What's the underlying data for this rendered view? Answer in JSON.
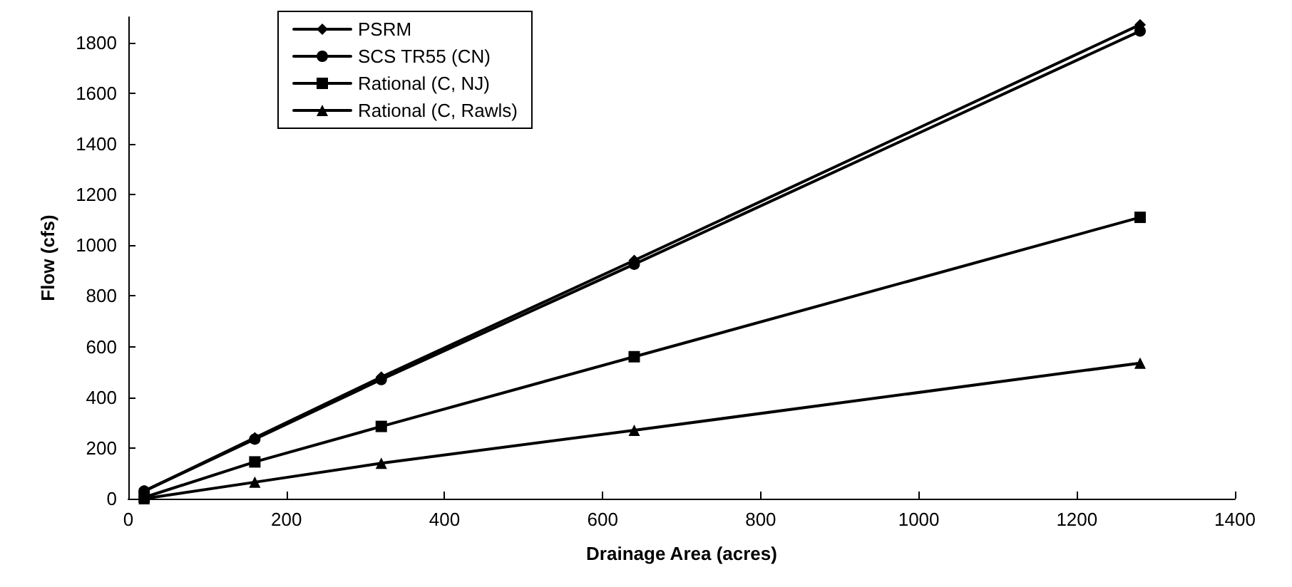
{
  "chart_data": {
    "type": "line",
    "xlabel": "Drainage Area (acres)",
    "ylabel": "Flow (cfs)",
    "x": [
      20,
      160,
      320,
      640,
      1280
    ],
    "series": [
      {
        "name": "PSRM",
        "color": "#000000",
        "marker": "diamond",
        "values": [
          30,
          240,
          480,
          940,
          1870
        ]
      },
      {
        "name": "SCS TR55 (CN)",
        "color": "#000000",
        "marker": "circle",
        "values": [
          30,
          235,
          470,
          925,
          1845
        ]
      },
      {
        "name": "Rational (C, NJ)",
        "color": "#000000",
        "marker": "square",
        "values": [
          5,
          145,
          285,
          560,
          1110
        ]
      },
      {
        "name": "Rational (C, Rawls)",
        "color": "#000000",
        "marker": "triangle",
        "values": [
          0,
          65,
          140,
          270,
          535
        ]
      }
    ],
    "xlim": [
      0,
      1400
    ],
    "xticks": [
      0,
      200,
      400,
      600,
      800,
      1000,
      1200,
      1400
    ],
    "ylim": [
      0,
      1900
    ],
    "yticks": [
      0,
      200,
      400,
      600,
      800,
      1000,
      1200,
      1400,
      1600,
      1800
    ],
    "grid": false,
    "legend": "top left"
  }
}
